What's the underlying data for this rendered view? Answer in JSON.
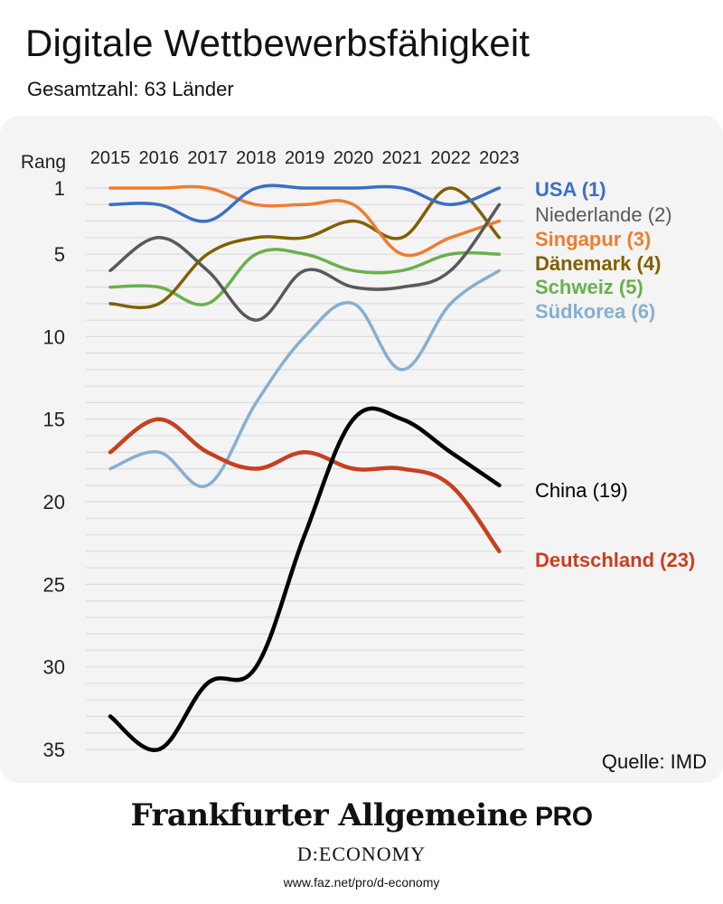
{
  "header": {
    "title": "Digitale Wettbewerbsfähigkeit",
    "subtitle": "Gesamtzahl: 63 Länder"
  },
  "chart_data": {
    "type": "line",
    "title": "Digitale Wettbewerbsfähigkeit",
    "subtitle": "Gesamtzahl: 63 Länder",
    "ylabel": "Rang",
    "y_axis_inverted": true,
    "ylim": [
      1,
      35
    ],
    "yticks": [
      1,
      5,
      10,
      15,
      20,
      25,
      30,
      35
    ],
    "x": [
      "2015",
      "2016",
      "2017",
      "2018",
      "2019",
      "2020",
      "2021",
      "2022",
      "2023"
    ],
    "series": [
      {
        "name": "USA",
        "label": "USA (1)",
        "color": "#3b6fc4",
        "values": [
          2,
          2,
          3,
          1,
          1,
          1,
          1,
          2,
          1
        ]
      },
      {
        "name": "Niederlande",
        "label": "Niederlande (2)",
        "color": "#595959",
        "values": [
          6,
          4,
          6,
          9,
          6,
          7,
          7,
          6,
          2
        ]
      },
      {
        "name": "Singapur",
        "label": "Singapur (3)",
        "color": "#ee7d31",
        "values": [
          1,
          1,
          1,
          2,
          2,
          2,
          5,
          4,
          3
        ]
      },
      {
        "name": "Dänemark",
        "label": "Dänemark (4)",
        "color": "#806000",
        "values": [
          8,
          8,
          5,
          4,
          4,
          3,
          4,
          1,
          4
        ]
      },
      {
        "name": "Schweiz",
        "label": "Schweiz (5)",
        "color": "#6ab04c",
        "values": [
          7,
          7,
          8,
          5,
          5,
          6,
          6,
          5,
          5
        ]
      },
      {
        "name": "Südkorea",
        "label": "Südkorea (6)",
        "color": "#86afd1",
        "values": [
          18,
          17,
          19,
          14,
          10,
          8,
          12,
          8,
          6
        ]
      },
      {
        "name": "China",
        "label": "China (19)",
        "color": "#000000",
        "values": [
          33,
          35,
          31,
          30,
          22,
          15,
          15,
          17,
          19
        ]
      },
      {
        "name": "Deutschland",
        "label": "Deutschland (23)",
        "color": "#c7401f",
        "values": [
          17,
          15,
          17,
          18,
          17,
          18,
          18,
          19,
          23
        ]
      }
    ]
  },
  "source": "Quelle: IMD",
  "footer": {
    "brand": "Frankfurter Allgemeine",
    "brand_suffix": "PRO",
    "section": "D:ECONOMY",
    "url": "www.faz.net/pro/d-economy"
  }
}
